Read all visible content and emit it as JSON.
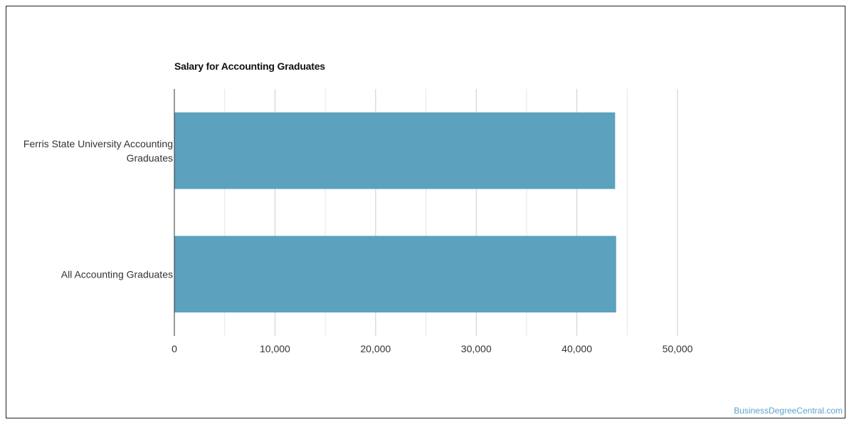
{
  "chart_data": {
    "type": "bar",
    "orientation": "horizontal",
    "title": "Salary for Accounting Graduates",
    "categories": [
      "Ferris State University Accounting Graduates",
      "All Accounting Graduates"
    ],
    "category_label_lines": [
      [
        "Ferris State University Accounting",
        "Graduates"
      ],
      [
        "All Accounting Graduates"
      ]
    ],
    "values": [
      43800,
      43900
    ],
    "xlim": [
      0,
      50000
    ],
    "xticks": [
      0,
      10000,
      20000,
      30000,
      40000,
      50000
    ],
    "xtick_labels": [
      "0",
      "10,000",
      "20,000",
      "30,000",
      "40,000",
      "50,000"
    ],
    "xlabel": "",
    "ylabel": "",
    "grid": true,
    "bar_color": "#5ca1bd"
  },
  "watermark": "BusinessDegreeCentral.com"
}
